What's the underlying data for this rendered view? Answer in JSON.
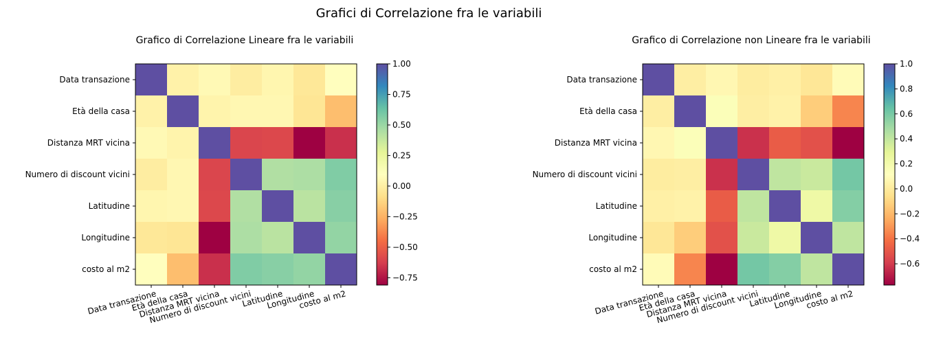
{
  "figure_title": "Grafici di Correlazione fra le variabili",
  "chart_data": [
    {
      "type": "heatmap",
      "title": "Grafico di Correlazione Lineare fra le variabili",
      "colormap": "Spectral",
      "labels": [
        "Data transazione",
        "Età della casa",
        "Distanza MRT vicina",
        "Numero di discount vicini",
        "Latitudine",
        "Longitudine",
        "costo al m2"
      ],
      "values": [
        [
          1.0,
          0.02,
          0.06,
          -0.01,
          0.04,
          -0.04,
          0.09
        ],
        [
          0.02,
          1.0,
          0.03,
          0.05,
          0.05,
          -0.05,
          -0.21
        ],
        [
          0.06,
          0.03,
          1.0,
          -0.6,
          -0.59,
          -0.81,
          -0.67
        ],
        [
          -0.01,
          0.05,
          -0.6,
          1.0,
          0.44,
          0.45,
          0.57
        ],
        [
          0.04,
          0.05,
          -0.59,
          0.44,
          1.0,
          0.41,
          0.55
        ],
        [
          -0.04,
          -0.05,
          -0.81,
          0.45,
          0.41,
          1.0,
          0.52
        ],
        [
          0.09,
          -0.21,
          -0.67,
          0.57,
          0.55,
          0.52,
          1.0
        ]
      ],
      "vmin": -0.81,
      "vmax": 1.0,
      "colorbar_ticks": [
        "−0.75",
        "−0.50",
        "−0.25",
        "0.00",
        "0.25",
        "0.50",
        "0.75",
        "1.00"
      ]
    },
    {
      "type": "heatmap",
      "title": "Grafico di Correlazione non Lineare fra le variabili",
      "colormap": "Spectral",
      "labels": [
        "Data transazione",
        "Età della casa",
        "Distanza MRT vicina",
        "Numero di discount vicini",
        "Latitudine",
        "Longitudine",
        "costo al m2"
      ],
      "values": [
        [
          1.0,
          0.02,
          0.07,
          0.01,
          0.03,
          -0.02,
          0.09
        ],
        [
          0.02,
          1.0,
          0.14,
          0.02,
          0.04,
          -0.13,
          -0.35
        ],
        [
          0.07,
          0.14,
          1.0,
          -0.63,
          -0.48,
          -0.52,
          -0.77
        ],
        [
          0.01,
          0.02,
          -0.63,
          1.0,
          0.41,
          0.38,
          0.61
        ],
        [
          0.03,
          0.04,
          -0.48,
          0.41,
          1.0,
          0.23,
          0.57
        ],
        [
          -0.02,
          -0.13,
          -0.52,
          0.38,
          0.23,
          1.0,
          0.41
        ],
        [
          0.09,
          -0.35,
          -0.77,
          0.61,
          0.57,
          0.41,
          1.0
        ]
      ],
      "vmin": -0.77,
      "vmax": 1.0,
      "colorbar_ticks": [
        "−0.6",
        "−0.4",
        "−0.2",
        "0.0",
        "0.2",
        "0.4",
        "0.6",
        "0.8",
        "1.0"
      ]
    }
  ]
}
